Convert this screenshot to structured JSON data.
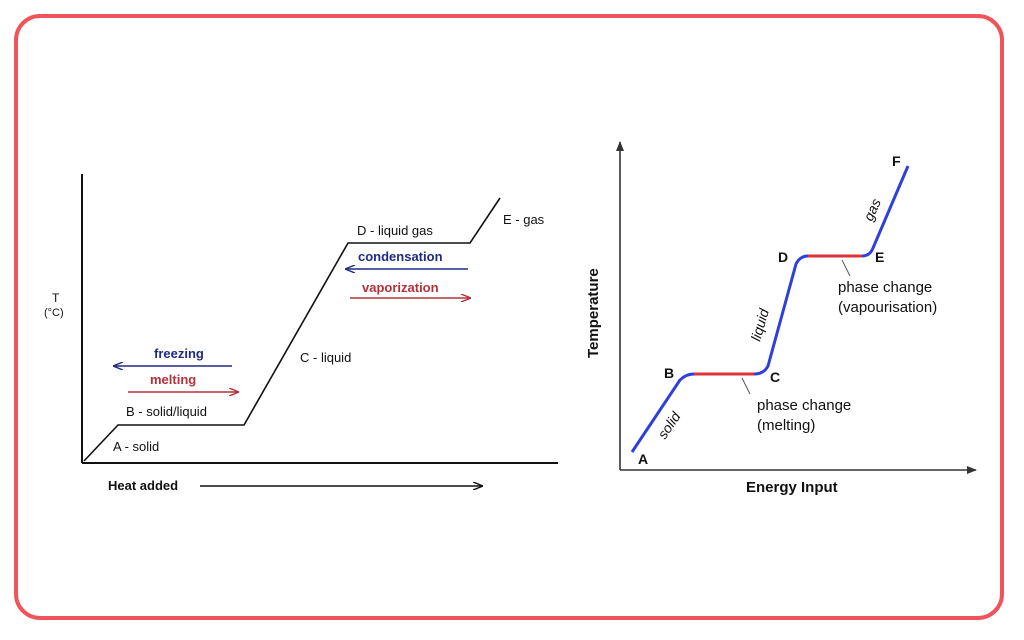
{
  "left_diagram": {
    "y_axis_label_top": "T",
    "y_axis_label_bottom": "(°C)",
    "x_axis_label": "Heat added",
    "labels": {
      "a": "A - solid",
      "b": "B - solid/liquid",
      "c": "C - liquid",
      "d": "D - liquid gas",
      "e": "E - gas"
    },
    "arrows": {
      "freezing": "freezing",
      "melting": "melting",
      "condensation": "condensation",
      "vaporization": "vaporization"
    }
  },
  "right_diagram": {
    "y_axis_label": "Temperature",
    "x_axis_label": "Energy Input",
    "points": {
      "a": "A",
      "b": "B",
      "c": "C",
      "d": "D",
      "e": "E",
      "f": "F"
    },
    "segments": {
      "solid": "solid",
      "liquid": "liquid",
      "gas": "gas"
    },
    "annotations": {
      "melting_line1": "phase change",
      "melting_line2": "(melting)",
      "vapour_line1": "phase change",
      "vapour_line2": "(vapourisation)"
    }
  },
  "colors": {
    "border": "#f0545a",
    "blue_arrow": "#1f2a80",
    "red_arrow": "#b5303a",
    "heating_line": "#2f3fdc",
    "phase_line": "#e0303a"
  }
}
